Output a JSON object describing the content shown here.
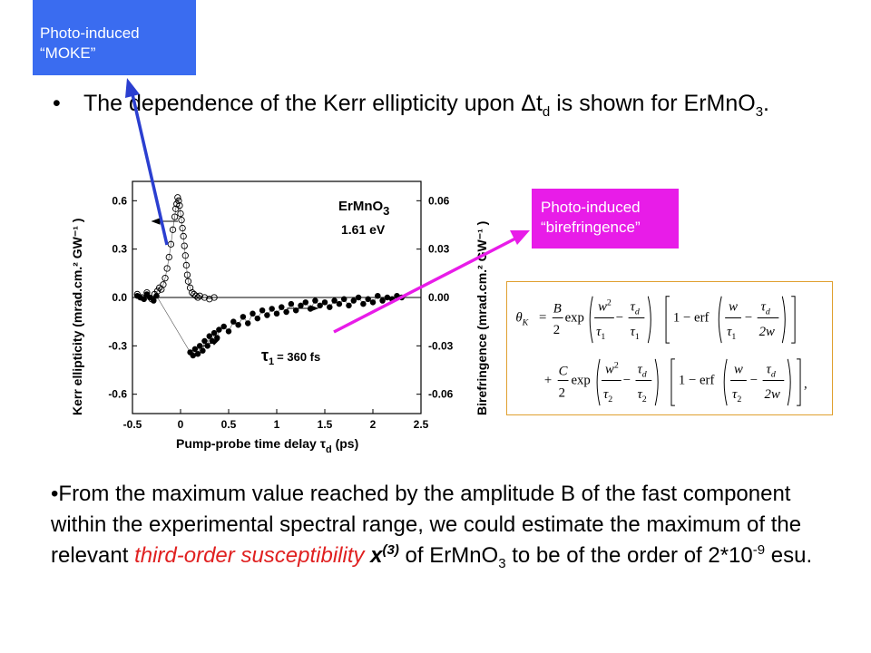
{
  "callouts": {
    "moke": {
      "line1": "Photo-induced",
      "line2": "“MOKE”"
    },
    "birefringence": {
      "line1": "Photo-induced",
      "line2": "“birefringence”"
    }
  },
  "bullet1": {
    "dot": "•",
    "text_a": "The dependence of the Kerr ellipticity upon Δt",
    "sub_a": "d",
    "text_b": " is shown for ErMnO",
    "sub_b": "3",
    "text_c": "."
  },
  "bullet2": {
    "text_a": "•From the maximum value reached by the amplitude B of the fast component within the experimental spectral range, we could estimate the maximum of the relevant ",
    "red_text": "third-order susceptibility",
    "chi": " x",
    "chi_sup": "(3)",
    "text_b": " of ErMnO",
    "sub_b": "3",
    "text_c": " to be of the order of 2*10",
    "exp": "-9",
    "text_d": " esu."
  },
  "chart_data": {
    "type": "scatter",
    "sample_label": "ErMnO",
    "sample_sub": "3",
    "energy_label": "1.61 eV",
    "tau_label": "= 360 fs",
    "tau_symbol": "τ",
    "tau_sub": "1",
    "xlabel": "Pump-probe time delay τ",
    "xlabel_sub": "d",
    "xlabel_unit": " (ps)",
    "ylabel_left": "Kerr ellipticity  (mrad.cm.² GW⁻¹ )",
    "ylabel_right": "Birefringence  (mrad.cm.² GW⁻¹ )",
    "xlim": [
      -0.5,
      2.5
    ],
    "ylim": [
      -0.72,
      0.72
    ],
    "x_ticks": [
      "-0.5",
      "0",
      "0.5",
      "1",
      "1.5",
      "2",
      "2.5"
    ],
    "y_left_ticks": [
      "0.6",
      "0.3",
      "0.0",
      "-0.3",
      "-0.6"
    ],
    "y_right_ticks": [
      "0.06",
      "0.03",
      "0.00",
      "-0.03",
      "-0.06"
    ],
    "series": [
      {
        "marker": "open-circle",
        "x": [
          -0.45,
          -0.4,
          -0.35,
          -0.3,
          -0.27,
          -0.24,
          -0.22,
          -0.2,
          -0.18,
          -0.16,
          -0.14,
          -0.12,
          -0.1,
          -0.08,
          -0.06,
          -0.05,
          -0.04,
          -0.03,
          -0.02,
          -0.01,
          0.0,
          0.01,
          0.02,
          0.03,
          0.04,
          0.05,
          0.06,
          0.07,
          0.08,
          0.1,
          0.12,
          0.14,
          0.16,
          0.18,
          0.2,
          0.25,
          0.3,
          0.35
        ],
        "y": [
          0.02,
          0.0,
          0.03,
          -0.01,
          0.02,
          0.04,
          0.06,
          0.05,
          0.08,
          0.12,
          0.18,
          0.25,
          0.33,
          0.42,
          0.5,
          0.55,
          0.58,
          0.62,
          0.6,
          0.57,
          0.52,
          0.48,
          0.43,
          0.38,
          0.32,
          0.26,
          0.2,
          0.14,
          0.1,
          0.06,
          0.03,
          0.02,
          0.01,
          0.0,
          0.01,
          0.0,
          -0.01,
          0.0
        ]
      },
      {
        "marker": "filled-circle",
        "x": [
          -0.45,
          -0.42,
          -0.38,
          -0.35,
          -0.32,
          -0.28,
          -0.25,
          0.1,
          0.13,
          0.15,
          0.18,
          0.2,
          0.23,
          0.25,
          0.28,
          0.3,
          0.33,
          0.35,
          0.38,
          0.4,
          0.45,
          0.5,
          0.55,
          0.6,
          0.65,
          0.7,
          0.75,
          0.8,
          0.85,
          0.9,
          0.95,
          1.0,
          1.05,
          1.1,
          1.15,
          1.2,
          1.25,
          1.3,
          1.35,
          1.4,
          1.45,
          1.5,
          1.55,
          1.6,
          1.65,
          1.7,
          1.75,
          1.8,
          1.85,
          1.9,
          1.95,
          2.0,
          2.05,
          2.1,
          2.15,
          2.2,
          2.25,
          2.3
        ],
        "y": [
          0.01,
          0.0,
          -0.01,
          0.02,
          0.0,
          -0.02,
          0.01,
          -0.34,
          -0.36,
          -0.32,
          -0.35,
          -0.3,
          -0.33,
          -0.27,
          -0.3,
          -0.24,
          -0.27,
          -0.22,
          -0.25,
          -0.2,
          -0.18,
          -0.21,
          -0.15,
          -0.17,
          -0.12,
          -0.16,
          -0.1,
          -0.13,
          -0.08,
          -0.11,
          -0.07,
          -0.1,
          -0.06,
          -0.09,
          -0.04,
          -0.08,
          -0.05,
          -0.03,
          -0.07,
          -0.02,
          -0.05,
          -0.03,
          -0.06,
          -0.02,
          -0.04,
          -0.01,
          -0.05,
          -0.02,
          0.0,
          -0.04,
          -0.01,
          -0.03,
          0.01,
          -0.02,
          0.0,
          -0.01,
          0.01,
          0.0
        ]
      }
    ]
  },
  "formula": {
    "lhs": "θ",
    "lhs_sub": "K",
    "eq": "=",
    "B": "B",
    "C": "C",
    "two": "2",
    "exp": "exp",
    "w2": "w",
    "sq": "2",
    "tau": "τ",
    "d": "d",
    "one": "1",
    "erf": "1 − erf",
    "plus": "+",
    "w": "w",
    "two_w": "2w",
    "minus": "−"
  }
}
